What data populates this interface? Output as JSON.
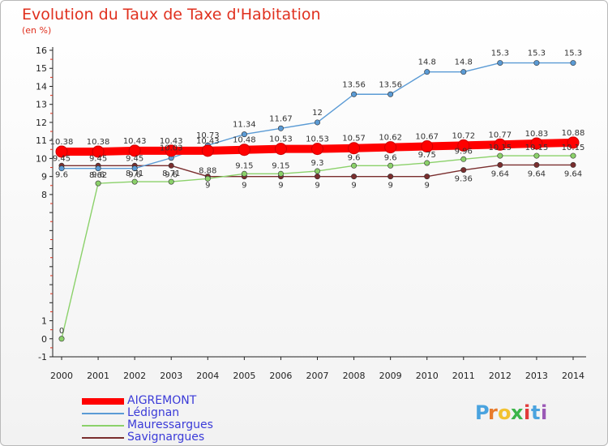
{
  "title": "Evolution du Taux de Taxe d'Habitation",
  "subtitle": "(en %)",
  "chart_data": {
    "type": "line",
    "x": [
      "2000",
      "2001",
      "2002",
      "2003",
      "2004",
      "2005",
      "2006",
      "2007",
      "2008",
      "2009",
      "2010",
      "2011",
      "2012",
      "2013",
      "2014"
    ],
    "ylim": [
      -1,
      16
    ],
    "yticks": [
      "-1",
      "0",
      "1",
      "8",
      "9",
      "10",
      "11",
      "12",
      "13",
      "14",
      "15",
      "16"
    ],
    "grid": false,
    "legend_placement": "bottom-left",
    "series": [
      {
        "name": "AIGREMONT",
        "color": "#ff0000",
        "values": [
          10.38,
          10.38,
          10.43,
          10.43,
          10.43,
          10.48,
          10.53,
          10.53,
          10.57,
          10.62,
          10.67,
          10.72,
          10.77,
          10.83,
          10.88
        ],
        "labels": [
          "10.38",
          "10.38",
          "10.43",
          "10.43",
          "10.43",
          "10.48",
          "10.53",
          "10.53",
          "10.57",
          "10.62",
          "10.67",
          "10.72",
          "10.77",
          "10.83",
          "10.88"
        ]
      },
      {
        "name": "Lédignan",
        "color": "#5b9bd5",
        "values": [
          9.45,
          9.45,
          9.45,
          10.03,
          10.73,
          11.34,
          11.67,
          12,
          13.56,
          13.56,
          14.8,
          14.8,
          15.3,
          15.3,
          15.3
        ],
        "labels": [
          "9.45",
          "9.45",
          "9.45",
          "10.03",
          "10.73",
          "11.34",
          "11.67",
          "12",
          "13.56",
          "13.56",
          "14.8",
          "14.8",
          "15.3",
          "15.3",
          "15.3"
        ]
      },
      {
        "name": "Mauressargues",
        "color": "#8bd16a",
        "values": [
          0,
          8.62,
          8.71,
          8.71,
          8.88,
          9.15,
          9.15,
          9.3,
          9.6,
          9.6,
          9.75,
          9.96,
          10.15,
          10.15,
          10.15
        ],
        "labels": [
          "0",
          "8.62",
          "8.71",
          "8.71",
          "8.88",
          "9.15",
          "9.15",
          "9.3",
          "9.6",
          "9.6",
          "9.75",
          "9.96",
          "10.15",
          "10.15",
          "10.15"
        ]
      },
      {
        "name": "Savignargues",
        "color": "#7a2e2e",
        "values": [
          9.6,
          9.6,
          9.6,
          9.6,
          9,
          9,
          9,
          9,
          9,
          9,
          9,
          9.36,
          9.64,
          9.64,
          9.64
        ],
        "labels": [
          "9.6",
          "9.6",
          "9.6",
          "9.6",
          "9",
          "9",
          "9",
          "9",
          "9",
          "9",
          "9",
          "9.36",
          "9.64",
          "9.64",
          "9.64"
        ]
      }
    ]
  },
  "legend": {
    "items": [
      "AIGREMONT",
      "Lédignan",
      "Mauressargues",
      "Savignargues"
    ]
  },
  "logo": {
    "text": "Proxiti",
    "letters": [
      "P",
      "r",
      "o",
      "x",
      "i",
      "t",
      "i"
    ],
    "colors": [
      "#4aa3df",
      "#e87b2c",
      "#f2c230",
      "#3cb54a",
      "#e23b3b",
      "#4aa3df",
      "#9b59b6"
    ]
  }
}
